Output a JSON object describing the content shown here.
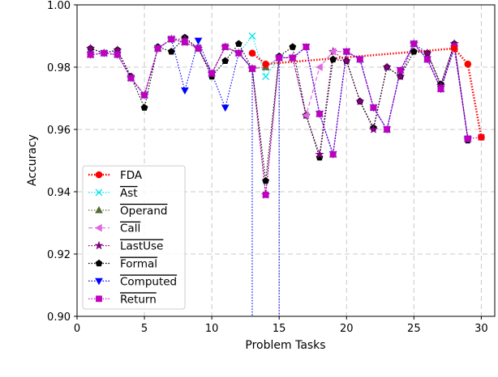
{
  "chart_data": {
    "type": "line",
    "title": "",
    "xlabel": "Problem Tasks",
    "ylabel": "Accuracy",
    "xlim": [
      0,
      31
    ],
    "ylim": [
      0.9,
      1.0
    ],
    "xticks": [
      0,
      5,
      10,
      15,
      20,
      25,
      30
    ],
    "yticks": [
      0.9,
      0.92,
      0.94,
      0.96,
      0.98,
      1.0
    ],
    "xtick_labels": [
      "0",
      "5",
      "10",
      "15",
      "20",
      "25",
      "30"
    ],
    "ytick_labels": [
      "0.90",
      "0.92",
      "0.94",
      "0.96",
      "0.98",
      "1.00"
    ],
    "grid": true,
    "legend_position": "lower-left",
    "series": [
      {
        "name": "FDA",
        "overline": false,
        "color": "#ff0000",
        "marker": "circle",
        "dash": "dotted-bold",
        "x": [
          13,
          14,
          28,
          29,
          30
        ],
        "y": [
          0.9845,
          0.981,
          0.986,
          0.981,
          0.9575
        ]
      },
      {
        "name": "Ast",
        "overline": true,
        "color": "#00e5ee",
        "marker": "x",
        "dash": "dotted",
        "x": [
          1,
          2,
          3,
          4,
          5,
          6,
          7,
          8,
          9,
          10,
          11,
          12,
          13,
          14,
          15,
          16,
          17,
          18,
          19,
          20,
          21,
          22,
          23,
          24,
          25,
          26,
          27,
          28,
          29
        ],
        "y": [
          0.984,
          0.9845,
          0.984,
          0.9765,
          0.971,
          0.986,
          0.989,
          0.988,
          0.986,
          0.978,
          0.9865,
          0.9845,
          0.99,
          0.977,
          0.983,
          0.983,
          0.9865,
          0.965,
          0.952,
          0.985,
          0.9825,
          0.967,
          0.96,
          0.979,
          0.9875,
          0.9825,
          0.973,
          0.9865,
          0.957
        ]
      },
      {
        "name": "Operand",
        "overline": true,
        "color": "#556b2f",
        "marker": "triangle-up",
        "dash": "dotted",
        "x": [
          1,
          2,
          3,
          4,
          5,
          6,
          7,
          8,
          9,
          10,
          11,
          12,
          13,
          14,
          15,
          16,
          17,
          18,
          19,
          20,
          21,
          22,
          23,
          24,
          25,
          26,
          27,
          28,
          29
        ],
        "y": [
          0.984,
          0.9845,
          0.984,
          0.9765,
          0.971,
          0.986,
          0.989,
          0.988,
          0.986,
          0.978,
          0.9865,
          0.9845,
          0.9795,
          0.98,
          0.983,
          0.983,
          0.9865,
          0.965,
          0.952,
          0.985,
          0.9825,
          0.967,
          0.96,
          0.979,
          0.9875,
          0.9825,
          0.973,
          0.9865,
          0.957
        ]
      },
      {
        "name": "Call",
        "overline": true,
        "color": "#e066e0",
        "marker": "triangle-left",
        "dash": "dashed",
        "x": [
          1,
          2,
          3,
          4,
          5,
          6,
          7,
          8,
          9,
          10,
          11,
          12,
          13,
          14,
          15,
          16,
          17,
          18,
          19,
          20,
          21,
          22,
          23,
          24,
          25,
          26,
          27,
          28,
          29
        ],
        "y": [
          0.984,
          0.9845,
          0.984,
          0.9765,
          0.971,
          0.986,
          0.989,
          0.988,
          0.986,
          0.978,
          0.9865,
          0.9845,
          0.9795,
          0.98,
          0.983,
          0.983,
          0.9645,
          0.98,
          0.985,
          0.985,
          0.9825,
          0.967,
          0.96,
          0.979,
          0.9875,
          0.9825,
          0.973,
          0.9865,
          0.957
        ]
      },
      {
        "name": "LastUse",
        "overline": true,
        "color": "#800080",
        "marker": "star",
        "dash": "dotted",
        "x": [
          1,
          2,
          3,
          4,
          5,
          6,
          7,
          8,
          9,
          10,
          11,
          12,
          13,
          14,
          15,
          16,
          17,
          18,
          19,
          20,
          21,
          22,
          23,
          24,
          25,
          26,
          27,
          28,
          29
        ],
        "y": [
          0.986,
          0.9845,
          0.9855,
          0.9765,
          0.971,
          0.986,
          0.989,
          0.989,
          0.986,
          0.978,
          0.9865,
          0.9845,
          0.9795,
          0.939,
          0.983,
          0.983,
          0.9645,
          0.952,
          0.985,
          0.982,
          0.969,
          0.96,
          0.98,
          0.977,
          0.9875,
          0.9845,
          0.974,
          0.9875,
          0.957
        ]
      },
      {
        "name": "Formal",
        "overline": true,
        "color": "#000000",
        "marker": "pentagon",
        "dash": "dotted",
        "x": [
          1,
          2,
          3,
          4,
          5,
          6,
          7,
          8,
          9,
          10,
          11,
          12,
          13,
          14,
          15,
          16,
          17,
          18,
          19,
          20,
          21,
          22,
          23,
          24,
          25,
          26,
          27,
          28,
          29
        ],
        "y": [
          0.986,
          0.9845,
          0.9855,
          0.977,
          0.967,
          0.9865,
          0.985,
          0.9895,
          0.986,
          0.977,
          0.982,
          0.9875,
          0.9795,
          0.9435,
          0.9835,
          0.9865,
          0.9645,
          0.951,
          0.9825,
          0.982,
          0.969,
          0.9605,
          0.98,
          0.977,
          0.985,
          0.9845,
          0.9745,
          0.9875,
          0.9565
        ]
      },
      {
        "name": "Computed",
        "overline": true,
        "color": "#0000ff",
        "marker": "triangle-down",
        "dash": "dotted",
        "x": [
          1,
          2,
          3,
          4,
          5,
          6,
          7,
          8,
          9,
          10,
          11,
          12,
          13,
          13.001,
          14.999,
          15,
          16,
          17,
          18,
          19,
          20,
          21,
          22,
          23,
          24,
          25,
          26,
          27,
          28,
          29
        ],
        "y": [
          0.984,
          0.9845,
          0.984,
          0.9765,
          0.971,
          0.986,
          0.989,
          0.9725,
          0.9885,
          0.978,
          0.967,
          0.9845,
          0.9795,
          0.89,
          0.89,
          0.983,
          0.983,
          0.9865,
          0.965,
          0.952,
          0.985,
          0.9825,
          0.967,
          0.96,
          0.979,
          0.9875,
          0.9825,
          0.973,
          0.986,
          0.957
        ]
      },
      {
        "name": "Return",
        "overline": true,
        "color": "#c000c0",
        "marker": "square",
        "dash": "dotted",
        "x": [
          1,
          2,
          3,
          4,
          5,
          6,
          7,
          8,
          9,
          10,
          11,
          12,
          13,
          14,
          15,
          16,
          17,
          18,
          19,
          20,
          21,
          22,
          23,
          24,
          25,
          26,
          27,
          28,
          29,
          30
        ],
        "y": [
          0.984,
          0.9845,
          0.984,
          0.9765,
          0.971,
          0.986,
          0.989,
          0.988,
          0.986,
          0.978,
          0.9865,
          0.9845,
          0.9795,
          0.939,
          0.983,
          0.983,
          0.9865,
          0.965,
          0.952,
          0.985,
          0.9825,
          0.967,
          0.96,
          0.979,
          0.9875,
          0.9825,
          0.973,
          0.9865,
          0.957,
          0.9575
        ]
      }
    ]
  }
}
